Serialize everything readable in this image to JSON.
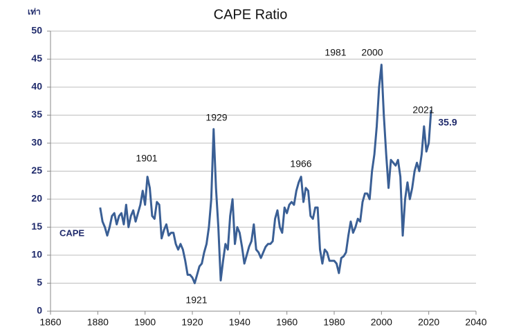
{
  "chart_data": {
    "type": "line",
    "title": "CAPE Ratio",
    "y_unit": "เท่า",
    "annotations": [
      "1901",
      "1929",
      "1966",
      "1981",
      "2000",
      "2021",
      "1921",
      "35.9"
    ],
    "xlim": [
      1860,
      2040
    ],
    "xticks": [
      1860,
      1880,
      1900,
      1920,
      1940,
      1960,
      1980,
      2000,
      2020,
      2040
    ],
    "ylim": [
      0,
      50
    ],
    "yticks": [
      0,
      5,
      10,
      15,
      20,
      25,
      30,
      35,
      40,
      45,
      50
    ],
    "grid": true,
    "series": [
      {
        "name": "CAPE",
        "color": "#3a5f95",
        "x": [
          1881,
          1882,
          1883,
          1884,
          1885,
          1886,
          1887,
          1888,
          1889,
          1890,
          1891,
          1892,
          1893,
          1894,
          1895,
          1896,
          1897,
          1898,
          1899,
          1900,
          1901,
          1902,
          1903,
          1904,
          1905,
          1906,
          1907,
          1908,
          1909,
          1910,
          1911,
          1912,
          1913,
          1914,
          1915,
          1916,
          1917,
          1918,
          1919,
          1920,
          1921,
          1922,
          1923,
          1924,
          1925,
          1926,
          1927,
          1928,
          1929,
          1930,
          1931,
          1932,
          1933,
          1934,
          1935,
          1936,
          1937,
          1938,
          1939,
          1940,
          1941,
          1942,
          1943,
          1944,
          1945,
          1946,
          1947,
          1948,
          1949,
          1950,
          1951,
          1952,
          1953,
          1954,
          1955,
          1956,
          1957,
          1958,
          1959,
          1960,
          1961,
          1962,
          1963,
          1964,
          1965,
          1966,
          1967,
          1968,
          1969,
          1970,
          1971,
          1972,
          1973,
          1974,
          1975,
          1976,
          1977,
          1978,
          1979,
          1980,
          1981,
          1982,
          1983,
          1984,
          1985,
          1986,
          1987,
          1988,
          1989,
          1990,
          1991,
          1992,
          1993,
          1994,
          1995,
          1996,
          1997,
          1998,
          1999,
          2000,
          2001,
          2002,
          2003,
          2004,
          2005,
          2006,
          2007,
          2008,
          2009,
          2010,
          2011,
          2012,
          2013,
          2014,
          2015,
          2016,
          2017,
          2018,
          2019,
          2020,
          2021
        ],
        "values": [
          18.5,
          16,
          15,
          13.5,
          15,
          17,
          17.5,
          15.5,
          17,
          17.5,
          15.5,
          19,
          15,
          17,
          18,
          16,
          17.5,
          19,
          21.5,
          19,
          24,
          22,
          17,
          16.5,
          19.5,
          19,
          13,
          14.5,
          15.5,
          13.5,
          14,
          14,
          12,
          11,
          12,
          11,
          9,
          6.5,
          6.5,
          6,
          5,
          6.5,
          8,
          8.5,
          10.5,
          12,
          15,
          20,
          32.5,
          22,
          15,
          5.5,
          9,
          12,
          11,
          17,
          20,
          12,
          15,
          14,
          11.5,
          8.5,
          10,
          11.5,
          12.5,
          15.5,
          11,
          10.5,
          9.5,
          10.5,
          11.5,
          12,
          12,
          12.5,
          16.5,
          18,
          15,
          14,
          18.5,
          17.5,
          19,
          19.5,
          19,
          21.5,
          23,
          24,
          19.5,
          22,
          21.5,
          17,
          16.5,
          18.5,
          18.5,
          11,
          8.5,
          11,
          10.5,
          9,
          9,
          9,
          8.5,
          6.8,
          9.5,
          9.8,
          10.5,
          13.5,
          16,
          14,
          15,
          16.5,
          16,
          19.5,
          21,
          21,
          20,
          25,
          28,
          33,
          40,
          44,
          35,
          28,
          22,
          27,
          26.5,
          26,
          27,
          24,
          13.5,
          20,
          23,
          20,
          22,
          25,
          26.5,
          25,
          28,
          33,
          28.5,
          30,
          35.9
        ]
      }
    ]
  }
}
